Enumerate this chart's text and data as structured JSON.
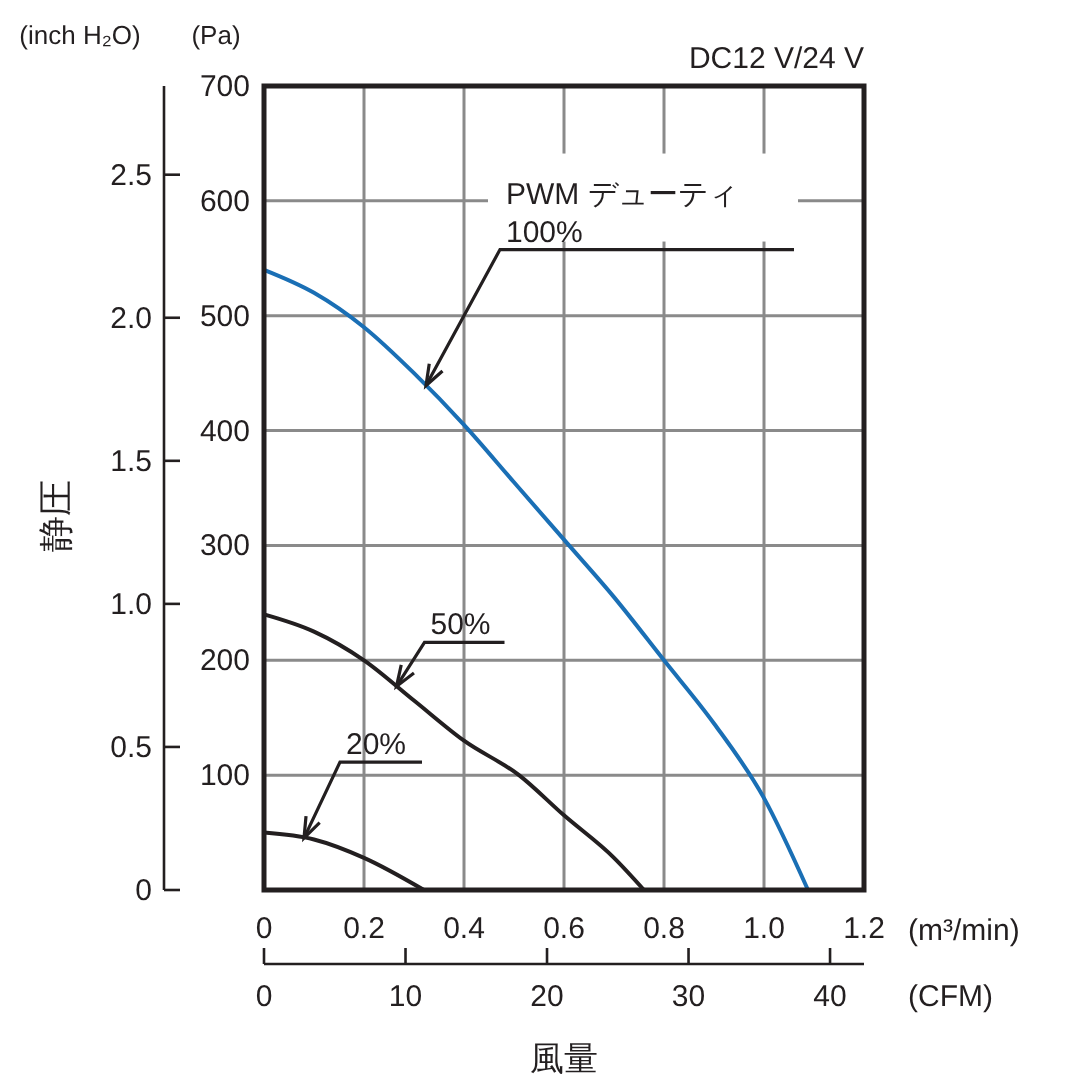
{
  "chart_data": {
    "type": "line",
    "title": "DC12 V/24 V",
    "xlabel": "風量",
    "y2label": "静圧",
    "x2label": "(CFM)",
    "annotations": [
      "PWM デューティ",
      "(Pa)",
      "(m³/min)",
      "(inch H₂O)"
    ],
    "xlim": [
      0,
      1.2
    ],
    "xticks": [
      {
        "value": 0,
        "label": "0"
      },
      0.2,
      0.4,
      0.6,
      0.8,
      {
        "value": 1,
        "label": "1.0"
      },
      1.2
    ],
    "ylim": [
      0,
      700
    ],
    "yticks": [
      100,
      200,
      300,
      400,
      500,
      600,
      700
    ],
    "y2lim": [
      0,
      2.81
    ],
    "y2ticks": [
      0,
      0.5,
      {
        "value": 1,
        "label": "1.0"
      },
      1.5,
      {
        "value": 2,
        "label": "2.0"
      },
      2.5
    ],
    "x2lim": [
      0,
      42.4
    ],
    "x2ticks": [
      0,
      10,
      20,
      30,
      40
    ],
    "grid": true,
    "line_style": "solid",
    "marker": "none",
    "series": [
      {
        "name": "100%",
        "color": "#1a6fb5",
        "x": [
          0,
          0.1,
          0.2,
          0.3,
          0.4,
          0.5,
          0.6,
          0.7,
          0.8,
          0.9,
          1.0,
          1.088
        ],
        "values": [
          540,
          520,
          490,
          450,
          405,
          355,
          305,
          255,
          200,
          145,
          80,
          0
        ]
      },
      {
        "name": "50%",
        "color": "#231f20",
        "x": [
          0,
          0.1,
          0.2,
          0.3,
          0.4,
          0.51,
          0.6,
          0.7,
          0.76
        ],
        "values": [
          240,
          225,
          200,
          165,
          130,
          100,
          65,
          28,
          0
        ]
      },
      {
        "name": "20%",
        "color": "#231f20",
        "x": [
          0,
          0.1,
          0.2,
          0.32
        ],
        "values": [
          50,
          44,
          28,
          0
        ]
      }
    ]
  }
}
